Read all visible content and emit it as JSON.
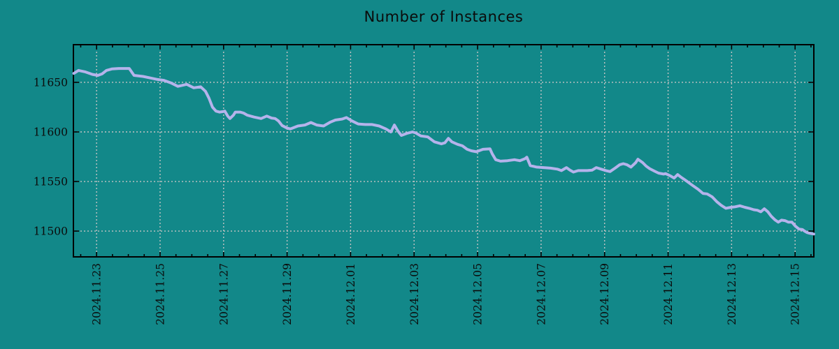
{
  "chart_title": "Number of Instances",
  "colors": {
    "background": "#128889",
    "line": "#b5b3eb",
    "grid": "#c4c4c4",
    "axis": "#000000",
    "text": "#0b0b0b"
  },
  "chart_data": {
    "type": "line",
    "title": "Number of Instances",
    "xlabel": "",
    "ylabel": "",
    "legend": false,
    "grid": true,
    "grid_style": "dotted",
    "x_axis": {
      "tick_labels": [
        "2024.11.23",
        "2024.11.25",
        "2024.11.27",
        "2024.11.29",
        "2024.12.01",
        "2024.12.03",
        "2024.12.05",
        "2024.12.07",
        "2024.12.09",
        "2024.12.11",
        "2024.12.13",
        "2024.12.15"
      ],
      "tick_positions_days": [
        0,
        2,
        4,
        6,
        8,
        10,
        12,
        14,
        16,
        18,
        20,
        22
      ],
      "minor_tick_interval_days": 0.5,
      "xlim_days": [
        -0.73,
        22.59
      ],
      "labels_rotated_degrees": 90
    },
    "y_axis": {
      "tick_labels": [
        "11500",
        "11550",
        "11600",
        "11650"
      ],
      "tick_values": [
        11500,
        11550,
        11600,
        11650
      ],
      "ylim": [
        11474,
        11688
      ]
    },
    "series": [
      {
        "name": "Number of Instances",
        "points": [
          [
            -0.72,
            11659
          ],
          [
            -0.57,
            11662
          ],
          [
            -0.35,
            11660.5
          ],
          [
            -0.13,
            11658
          ],
          [
            0.04,
            11657
          ],
          [
            0.17,
            11658.5
          ],
          [
            0.31,
            11662
          ],
          [
            0.48,
            11663.5
          ],
          [
            0.7,
            11664
          ],
          [
            1.03,
            11664
          ],
          [
            1.18,
            11657
          ],
          [
            1.46,
            11656
          ],
          [
            1.68,
            11654.5
          ],
          [
            1.9,
            11653
          ],
          [
            2.12,
            11652
          ],
          [
            2.34,
            11649.5
          ],
          [
            2.56,
            11646
          ],
          [
            2.84,
            11648
          ],
          [
            3.06,
            11644.5
          ],
          [
            3.28,
            11645.5
          ],
          [
            3.43,
            11641
          ],
          [
            3.54,
            11634
          ],
          [
            3.65,
            11625
          ],
          [
            3.76,
            11621
          ],
          [
            3.87,
            11620
          ],
          [
            3.98,
            11620.5
          ],
          [
            4.04,
            11621
          ],
          [
            4.13,
            11616
          ],
          [
            4.2,
            11613.5
          ],
          [
            4.31,
            11617
          ],
          [
            4.37,
            11620
          ],
          [
            4.52,
            11620
          ],
          [
            4.63,
            11619
          ],
          [
            4.74,
            11617
          ],
          [
            4.96,
            11615
          ],
          [
            5.18,
            11613.5
          ],
          [
            5.36,
            11616
          ],
          [
            5.51,
            11614
          ],
          [
            5.62,
            11613.5
          ],
          [
            5.73,
            11611
          ],
          [
            5.84,
            11606.5
          ],
          [
            5.99,
            11604
          ],
          [
            6.1,
            11603
          ],
          [
            6.34,
            11606
          ],
          [
            6.56,
            11607
          ],
          [
            6.75,
            11609.5
          ],
          [
            6.93,
            11607
          ],
          [
            7.15,
            11606
          ],
          [
            7.37,
            11610
          ],
          [
            7.52,
            11612
          ],
          [
            7.74,
            11613
          ],
          [
            7.87,
            11614.5
          ],
          [
            8.02,
            11611.5
          ],
          [
            8.24,
            11608
          ],
          [
            8.46,
            11607.5
          ],
          [
            8.68,
            11607.5
          ],
          [
            8.9,
            11606
          ],
          [
            9.11,
            11603
          ],
          [
            9.27,
            11600
          ],
          [
            9.38,
            11607
          ],
          [
            9.49,
            11601
          ],
          [
            9.6,
            11596.5
          ],
          [
            9.77,
            11598.5
          ],
          [
            9.95,
            11600
          ],
          [
            10.05,
            11599
          ],
          [
            10.21,
            11596
          ],
          [
            10.43,
            11595
          ],
          [
            10.64,
            11590
          ],
          [
            10.86,
            11588
          ],
          [
            10.97,
            11589
          ],
          [
            11.08,
            11593.5
          ],
          [
            11.19,
            11590
          ],
          [
            11.37,
            11587.5
          ],
          [
            11.52,
            11586
          ],
          [
            11.67,
            11582.5
          ],
          [
            11.8,
            11581
          ],
          [
            11.96,
            11580
          ],
          [
            12.17,
            11582.5
          ],
          [
            12.39,
            11583
          ],
          [
            12.46,
            11578
          ],
          [
            12.57,
            11572
          ],
          [
            12.72,
            11570.5
          ],
          [
            12.94,
            11571
          ],
          [
            13.16,
            11572
          ],
          [
            13.33,
            11571
          ],
          [
            13.49,
            11573
          ],
          [
            13.55,
            11574.5
          ],
          [
            13.66,
            11566
          ],
          [
            13.86,
            11564.5
          ],
          [
            14.08,
            11564
          ],
          [
            14.3,
            11563.5
          ],
          [
            14.51,
            11562.5
          ],
          [
            14.64,
            11561
          ],
          [
            14.8,
            11564
          ],
          [
            14.91,
            11561.5
          ],
          [
            15.02,
            11559.5
          ],
          [
            15.17,
            11561
          ],
          [
            15.45,
            11561
          ],
          [
            15.61,
            11561.5
          ],
          [
            15.74,
            11564
          ],
          [
            15.89,
            11562.5
          ],
          [
            16.04,
            11561
          ],
          [
            16.17,
            11560
          ],
          [
            16.33,
            11563.5
          ],
          [
            16.48,
            11567
          ],
          [
            16.59,
            11568
          ],
          [
            16.7,
            11567
          ],
          [
            16.83,
            11564.5
          ],
          [
            16.98,
            11569
          ],
          [
            17.05,
            11572.5
          ],
          [
            17.2,
            11569
          ],
          [
            17.31,
            11565.5
          ],
          [
            17.42,
            11563
          ],
          [
            17.57,
            11560.5
          ],
          [
            17.7,
            11558.5
          ],
          [
            17.86,
            11557.5
          ],
          [
            17.92,
            11558
          ],
          [
            18.08,
            11555.5
          ],
          [
            18.19,
            11553.5
          ],
          [
            18.3,
            11557
          ],
          [
            18.4,
            11554.5
          ],
          [
            18.56,
            11551
          ],
          [
            18.73,
            11547
          ],
          [
            18.95,
            11542
          ],
          [
            19.1,
            11538
          ],
          [
            19.23,
            11537.5
          ],
          [
            19.39,
            11534.5
          ],
          [
            19.54,
            11529.5
          ],
          [
            19.67,
            11526
          ],
          [
            19.82,
            11523
          ],
          [
            19.98,
            11524
          ],
          [
            20.11,
            11524.5
          ],
          [
            20.26,
            11525.5
          ],
          [
            20.42,
            11524
          ],
          [
            20.55,
            11523
          ],
          [
            20.7,
            11521.5
          ],
          [
            20.81,
            11521
          ],
          [
            20.92,
            11519.5
          ],
          [
            21.03,
            11522.5
          ],
          [
            21.14,
            11519.5
          ],
          [
            21.25,
            11515
          ],
          [
            21.36,
            11511.5
          ],
          [
            21.47,
            11509
          ],
          [
            21.57,
            11511
          ],
          [
            21.68,
            11510.5
          ],
          [
            21.79,
            11509
          ],
          [
            21.9,
            11509
          ],
          [
            22.01,
            11505
          ],
          [
            22.12,
            11502
          ],
          [
            22.23,
            11501.5
          ],
          [
            22.3,
            11500
          ],
          [
            22.38,
            11498.5
          ],
          [
            22.43,
            11498
          ],
          [
            22.59,
            11497
          ]
        ]
      }
    ]
  }
}
